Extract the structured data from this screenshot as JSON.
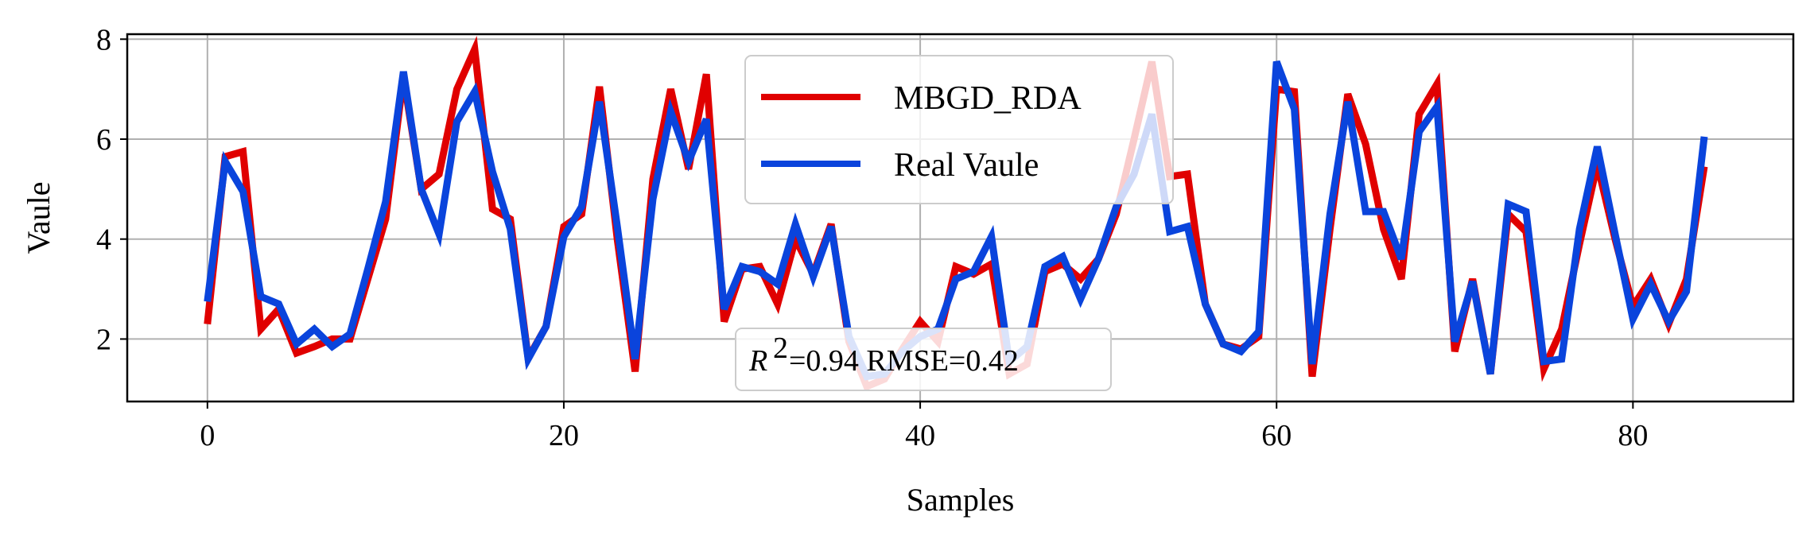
{
  "chart_data": {
    "type": "line",
    "xlabel": "Samples",
    "ylabel": "Vaule",
    "xlim": [
      -4.5,
      89
    ],
    "ylim": [
      0.75,
      8.1
    ],
    "xticks": [
      0,
      20,
      40,
      60,
      80
    ],
    "yticks": [
      2,
      4,
      6,
      8
    ],
    "grid": true,
    "legend_position": "top-center",
    "annotation": {
      "r2_symbol": "R",
      "r2_exponent": "2",
      "text": "=0.94 RMSE=0.42"
    },
    "series": [
      {
        "name": "MBGD_RDA",
        "color": "#e00000",
        "values": [
          2.3,
          5.65,
          5.75,
          2.2,
          2.6,
          1.72,
          1.85,
          2.0,
          2.0,
          3.2,
          4.4,
          7.25,
          5.0,
          5.3,
          7.0,
          7.8,
          4.6,
          4.4,
          1.62,
          2.25,
          4.25,
          4.5,
          7.05,
          4.0,
          1.35,
          5.2,
          7.0,
          5.4,
          7.3,
          2.35,
          3.4,
          3.45,
          2.7,
          4.0,
          3.3,
          4.3,
          1.95,
          1.05,
          1.2,
          1.8,
          2.35,
          1.95,
          3.45,
          3.3,
          3.5,
          1.3,
          1.5,
          3.35,
          3.5,
          3.2,
          3.6,
          4.5,
          6.0,
          7.55,
          5.25,
          5.3,
          2.7,
          1.9,
          1.8,
          2.05,
          7.0,
          6.95,
          1.25,
          4.2,
          6.9,
          5.9,
          4.2,
          3.2,
          6.5,
          7.1,
          1.75,
          3.2,
          1.3,
          4.5,
          4.15,
          1.4,
          2.2,
          3.9,
          5.5,
          4.0,
          2.65,
          3.2,
          2.3,
          3.2,
          5.45
        ]
      },
      {
        "name": "Real Vaule",
        "color": "#0a44dc",
        "values": [
          2.75,
          5.55,
          4.95,
          2.85,
          2.7,
          1.9,
          2.2,
          1.85,
          2.1,
          3.4,
          4.75,
          7.35,
          5.0,
          4.1,
          6.35,
          6.95,
          5.35,
          4.2,
          1.6,
          2.25,
          4.05,
          4.65,
          6.75,
          4.25,
          1.6,
          4.8,
          6.55,
          5.55,
          6.4,
          2.6,
          3.45,
          3.35,
          3.1,
          4.3,
          3.25,
          4.25,
          2.05,
          1.25,
          1.3,
          1.75,
          2.05,
          2.2,
          3.2,
          3.35,
          4.05,
          1.55,
          1.85,
          3.45,
          3.65,
          2.8,
          3.6,
          4.65,
          5.3,
          6.5,
          4.15,
          4.25,
          2.7,
          1.9,
          1.75,
          2.15,
          7.55,
          6.6,
          1.5,
          4.5,
          6.75,
          4.55,
          4.55,
          3.6,
          6.15,
          6.65,
          1.95,
          3.15,
          1.3,
          4.7,
          4.55,
          1.55,
          1.6,
          4.2,
          5.85,
          4.1,
          2.4,
          3.1,
          2.35,
          2.95,
          6.05
        ]
      }
    ]
  }
}
